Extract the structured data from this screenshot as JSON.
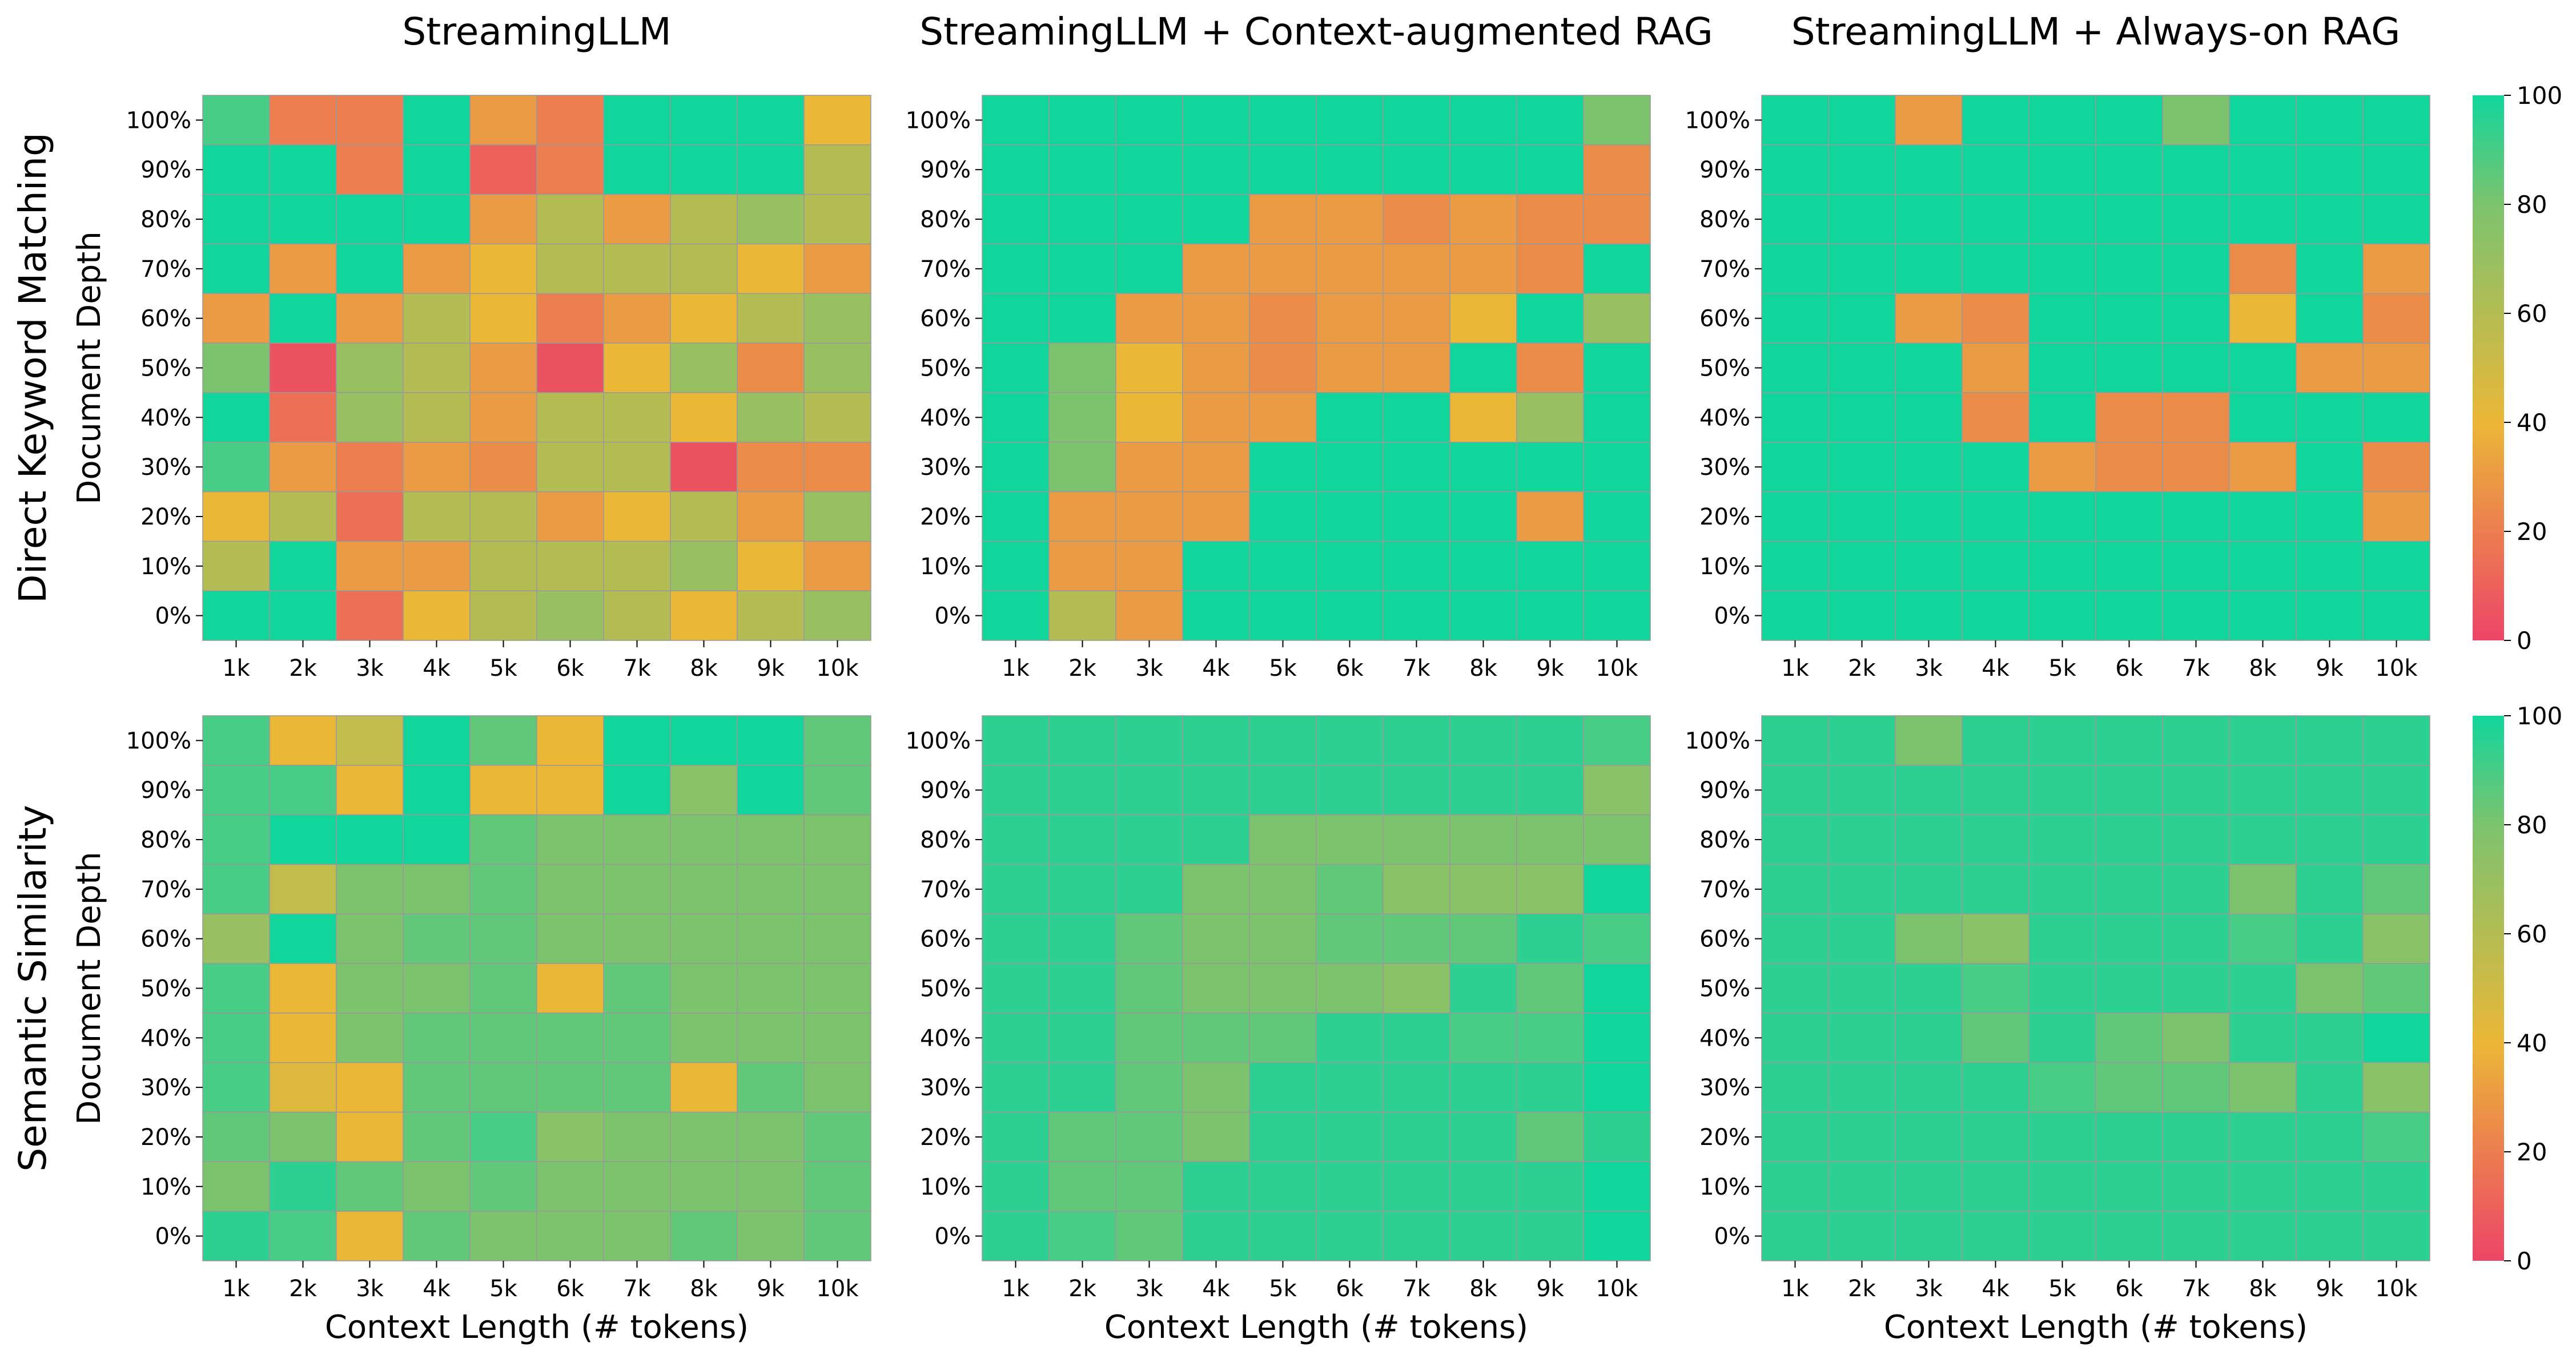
{
  "colors": {
    "scale_0": "#EC4567",
    "scale_40": "#EBB737",
    "scale_80": "#7CC36E",
    "scale_100": "#11D69C",
    "cell_border": "#999999",
    "axis": "#000000"
  },
  "colorbar": {
    "min": 0,
    "max": 100,
    "ticks": [
      "0",
      "20",
      "40",
      "60",
      "80",
      "100"
    ],
    "placement": "right of each row"
  },
  "chart_data": {
    "type": "heatmap",
    "column_titles": [
      "StreamingLLM",
      "StreamingLLM + Context-augmented RAG",
      "StreamingLLM + Always-on RAG"
    ],
    "row_titles": [
      "Direct Keyword Matching",
      "Semantic Similarity"
    ],
    "xlabel": "Context Length (# tokens)",
    "ylabel": "Document Depth",
    "x_categories": [
      "1k",
      "2k",
      "3k",
      "4k",
      "5k",
      "6k",
      "7k",
      "8k",
      "9k",
      "10k"
    ],
    "y_categories": [
      "100%",
      "90%",
      "80%",
      "70%",
      "60%",
      "50%",
      "40%",
      "30%",
      "20%",
      "10%",
      "0%"
    ],
    "value_range": [
      0,
      100
    ],
    "panels": [
      {
        "row": 0,
        "col": 0,
        "values": [
          [
            90,
            20,
            20,
            100,
            30,
            20,
            100,
            100,
            100,
            40
          ],
          [
            100,
            100,
            20,
            100,
            10,
            20,
            100,
            100,
            100,
            60
          ],
          [
            100,
            100,
            100,
            100,
            30,
            60,
            30,
            60,
            70,
            60
          ],
          [
            100,
            30,
            100,
            30,
            40,
            60,
            60,
            60,
            40,
            30
          ],
          [
            30,
            100,
            30,
            60,
            40,
            20,
            30,
            40,
            60,
            70
          ],
          [
            80,
            5,
            70,
            60,
            30,
            5,
            40,
            70,
            25,
            70
          ],
          [
            100,
            15,
            70,
            60,
            30,
            60,
            60,
            40,
            70,
            60
          ],
          [
            90,
            30,
            20,
            30,
            25,
            60,
            60,
            5,
            25,
            25
          ],
          [
            40,
            60,
            15,
            60,
            60,
            30,
            40,
            60,
            30,
            70
          ],
          [
            60,
            100,
            30,
            30,
            60,
            60,
            60,
            70,
            40,
            30
          ],
          [
            100,
            100,
            15,
            40,
            60,
            70,
            60,
            40,
            60,
            70
          ]
        ]
      },
      {
        "row": 0,
        "col": 1,
        "values": [
          [
            100,
            100,
            100,
            100,
            100,
            100,
            100,
            100,
            100,
            80
          ],
          [
            100,
            100,
            100,
            100,
            100,
            100,
            100,
            100,
            100,
            25
          ],
          [
            100,
            100,
            100,
            100,
            30,
            30,
            25,
            30,
            25,
            25
          ],
          [
            100,
            100,
            100,
            30,
            30,
            30,
            30,
            30,
            25,
            100
          ],
          [
            100,
            100,
            30,
            30,
            25,
            30,
            30,
            40,
            100,
            70
          ],
          [
            100,
            80,
            40,
            30,
            25,
            30,
            30,
            100,
            25,
            100
          ],
          [
            100,
            80,
            40,
            30,
            30,
            100,
            100,
            40,
            70,
            100
          ],
          [
            100,
            80,
            30,
            30,
            100,
            100,
            100,
            100,
            100,
            100
          ],
          [
            100,
            30,
            30,
            30,
            100,
            100,
            100,
            100,
            30,
            100
          ],
          [
            100,
            30,
            30,
            100,
            100,
            100,
            100,
            100,
            100,
            100
          ],
          [
            100,
            60,
            30,
            100,
            100,
            100,
            100,
            100,
            100,
            100
          ]
        ]
      },
      {
        "row": 0,
        "col": 2,
        "values": [
          [
            100,
            100,
            30,
            100,
            100,
            100,
            80,
            100,
            100,
            100
          ],
          [
            100,
            100,
            100,
            100,
            100,
            100,
            100,
            100,
            100,
            100
          ],
          [
            100,
            100,
            100,
            100,
            100,
            100,
            100,
            100,
            100,
            100
          ],
          [
            100,
            100,
            100,
            100,
            100,
            100,
            100,
            25,
            100,
            30
          ],
          [
            100,
            100,
            30,
            25,
            100,
            100,
            100,
            40,
            100,
            25
          ],
          [
            100,
            100,
            100,
            30,
            100,
            100,
            100,
            100,
            30,
            30
          ],
          [
            100,
            100,
            100,
            25,
            100,
            25,
            25,
            100,
            100,
            100
          ],
          [
            100,
            100,
            100,
            100,
            30,
            25,
            25,
            30,
            100,
            25
          ],
          [
            100,
            100,
            100,
            100,
            100,
            100,
            100,
            100,
            100,
            30
          ],
          [
            100,
            100,
            100,
            100,
            100,
            100,
            100,
            100,
            100,
            100
          ],
          [
            100,
            100,
            100,
            100,
            100,
            100,
            100,
            100,
            100,
            100
          ]
        ]
      },
      {
        "row": 1,
        "col": 0,
        "values": [
          [
            90,
            40,
            55,
            100,
            85,
            40,
            100,
            100,
            100,
            85
          ],
          [
            90,
            90,
            40,
            100,
            40,
            40,
            100,
            75,
            100,
            85
          ],
          [
            90,
            100,
            100,
            100,
            85,
            80,
            80,
            80,
            80,
            80
          ],
          [
            90,
            55,
            80,
            80,
            85,
            80,
            80,
            80,
            80,
            80
          ],
          [
            70,
            100,
            80,
            85,
            85,
            80,
            80,
            80,
            80,
            80
          ],
          [
            90,
            40,
            80,
            80,
            85,
            40,
            85,
            80,
            80,
            80
          ],
          [
            90,
            40,
            80,
            85,
            85,
            85,
            85,
            80,
            80,
            80
          ],
          [
            90,
            45,
            40,
            85,
            85,
            85,
            85,
            40,
            85,
            80
          ],
          [
            85,
            80,
            40,
            85,
            90,
            75,
            80,
            80,
            80,
            85
          ],
          [
            80,
            95,
            85,
            80,
            85,
            80,
            80,
            80,
            80,
            85
          ],
          [
            95,
            90,
            40,
            85,
            80,
            80,
            80,
            85,
            80,
            85
          ]
        ]
      },
      {
        "row": 1,
        "col": 1,
        "values": [
          [
            95,
            95,
            95,
            95,
            95,
            95,
            95,
            95,
            95,
            90
          ],
          [
            95,
            95,
            95,
            95,
            95,
            95,
            95,
            95,
            95,
            75
          ],
          [
            95,
            95,
            95,
            95,
            80,
            80,
            80,
            80,
            80,
            80
          ],
          [
            95,
            95,
            95,
            80,
            80,
            85,
            75,
            75,
            75,
            100
          ],
          [
            95,
            95,
            85,
            80,
            80,
            85,
            85,
            85,
            95,
            90
          ],
          [
            95,
            95,
            85,
            80,
            80,
            80,
            75,
            95,
            85,
            100
          ],
          [
            95,
            95,
            85,
            85,
            85,
            95,
            95,
            90,
            90,
            100
          ],
          [
            95,
            95,
            85,
            80,
            95,
            95,
            95,
            95,
            95,
            100
          ],
          [
            95,
            85,
            85,
            80,
            95,
            95,
            95,
            95,
            85,
            95
          ],
          [
            95,
            85,
            85,
            95,
            95,
            95,
            95,
            95,
            95,
            100
          ],
          [
            95,
            90,
            85,
            95,
            95,
            95,
            95,
            95,
            95,
            100
          ]
        ]
      },
      {
        "row": 1,
        "col": 2,
        "values": [
          [
            95,
            95,
            80,
            95,
            95,
            95,
            95,
            95,
            95,
            95
          ],
          [
            95,
            95,
            95,
            95,
            95,
            95,
            95,
            95,
            95,
            95
          ],
          [
            95,
            95,
            95,
            95,
            95,
            95,
            95,
            95,
            95,
            95
          ],
          [
            95,
            95,
            95,
            95,
            95,
            95,
            95,
            80,
            95,
            85
          ],
          [
            95,
            95,
            80,
            75,
            95,
            95,
            95,
            90,
            95,
            75
          ],
          [
            95,
            95,
            95,
            90,
            95,
            95,
            95,
            95,
            80,
            85
          ],
          [
            95,
            95,
            95,
            85,
            95,
            85,
            80,
            95,
            95,
            100
          ],
          [
            95,
            95,
            95,
            95,
            90,
            85,
            85,
            80,
            95,
            75
          ],
          [
            95,
            95,
            95,
            95,
            95,
            95,
            95,
            95,
            95,
            90
          ],
          [
            95,
            95,
            95,
            95,
            95,
            95,
            95,
            95,
            95,
            95
          ],
          [
            95,
            95,
            95,
            95,
            95,
            95,
            95,
            95,
            95,
            95
          ]
        ]
      }
    ]
  }
}
